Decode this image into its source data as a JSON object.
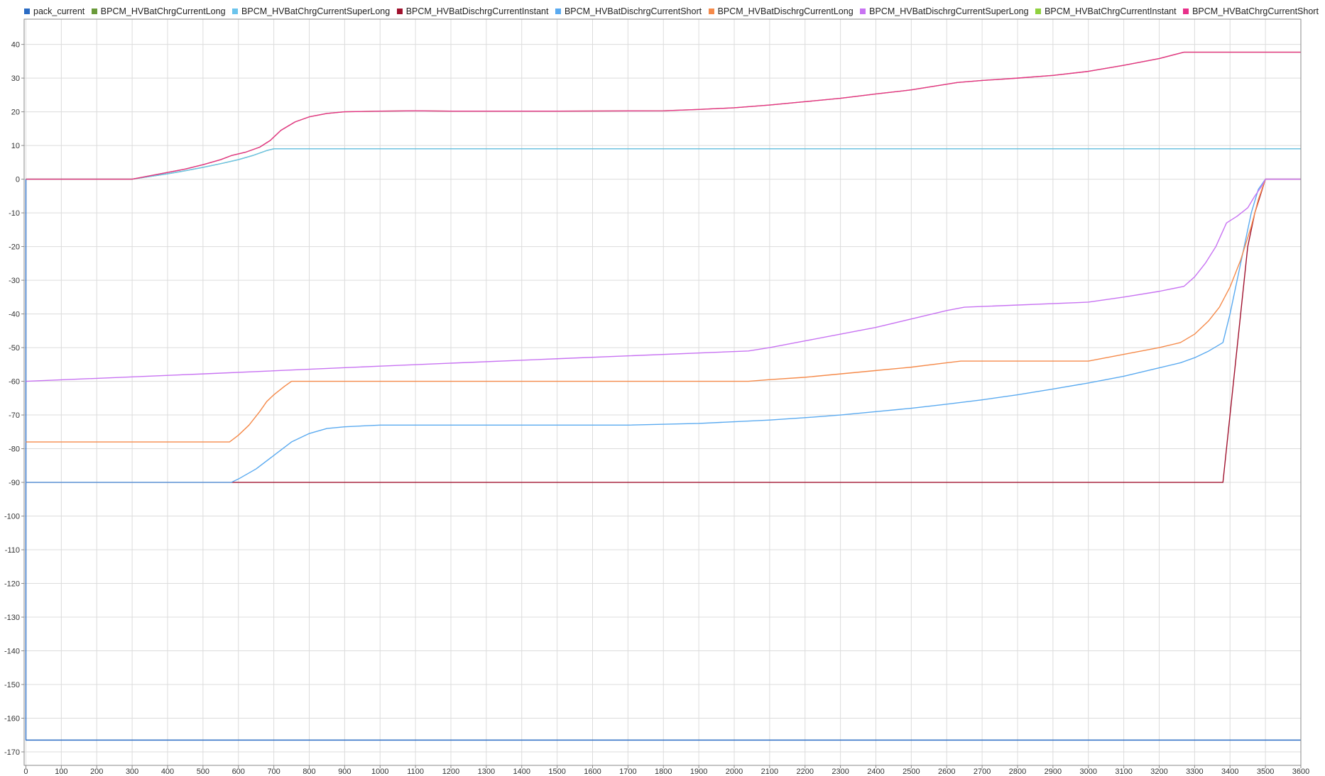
{
  "chart_data": {
    "type": "line",
    "title": "",
    "xlabel": "",
    "ylabel": "",
    "grid": true,
    "legend_position": "top",
    "xlim": [
      -5,
      3600
    ],
    "ylim": [
      -174,
      47.5
    ],
    "x_ticks": [
      0,
      100,
      200,
      300,
      400,
      500,
      600,
      700,
      800,
      900,
      1000,
      1100,
      1200,
      1300,
      1400,
      1500,
      1600,
      1700,
      1800,
      1900,
      2000,
      2100,
      2200,
      2300,
      2400,
      2500,
      2600,
      2700,
      2800,
      2900,
      3000,
      3100,
      3200,
      3300,
      3400,
      3500,
      3600
    ],
    "y_ticks": [
      40,
      30,
      20,
      10,
      0,
      -10,
      -20,
      -30,
      -40,
      -50,
      -60,
      -70,
      -80,
      -90,
      -100,
      -110,
      -120,
      -130,
      -140,
      -150,
      -160,
      -170
    ],
    "series": [
      {
        "name": "pack_current",
        "color": "#2b6cc4",
        "points": [
          [
            0,
            0
          ],
          [
            0,
            -166.5
          ],
          [
            3600,
            -166.5
          ]
        ]
      },
      {
        "name": "BPCM_HVBatChrgCurrentLong",
        "color": "#6a9a3a",
        "points": [
          [
            0,
            0
          ],
          [
            300,
            0
          ],
          [
            350,
            0.8
          ],
          [
            400,
            1.6
          ],
          [
            450,
            2.5
          ],
          [
            500,
            3.5
          ],
          [
            550,
            4.6
          ],
          [
            600,
            5.8
          ],
          [
            640,
            7
          ],
          [
            680,
            8.5
          ],
          [
            700,
            9
          ],
          [
            3600,
            9
          ]
        ]
      },
      {
        "name": "BPCM_HVBatChrgCurrentSuperLong",
        "color": "#6bc4ec",
        "points": [
          [
            0,
            0
          ],
          [
            300,
            0
          ],
          [
            350,
            0.8
          ],
          [
            400,
            1.6
          ],
          [
            450,
            2.5
          ],
          [
            500,
            3.5
          ],
          [
            550,
            4.6
          ],
          [
            600,
            5.8
          ],
          [
            640,
            7
          ],
          [
            680,
            8.5
          ],
          [
            700,
            9
          ],
          [
            3600,
            9
          ]
        ]
      },
      {
        "name": "BPCM_HVBatDischrgCurrentInstant",
        "color": "#a0122e",
        "points": [
          [
            0,
            -90
          ],
          [
            3380,
            -90
          ],
          [
            3420,
            -50
          ],
          [
            3450,
            -20
          ],
          [
            3470,
            -10
          ],
          [
            3500,
            0
          ],
          [
            3600,
            0
          ]
        ]
      },
      {
        "name": "BPCM_HVBatDischrgCurrentShort",
        "color": "#5aaaf0",
        "points": [
          [
            0,
            -90
          ],
          [
            580,
            -90
          ],
          [
            600,
            -89
          ],
          [
            650,
            -86
          ],
          [
            700,
            -82
          ],
          [
            750,
            -78
          ],
          [
            800,
            -75.5
          ],
          [
            850,
            -74
          ],
          [
            900,
            -73.5
          ],
          [
            1000,
            -73
          ],
          [
            1400,
            -73
          ],
          [
            1700,
            -73
          ],
          [
            1900,
            -72.5
          ],
          [
            2000,
            -72
          ],
          [
            2100,
            -71.5
          ],
          [
            2200,
            -70.8
          ],
          [
            2300,
            -70
          ],
          [
            2400,
            -69
          ],
          [
            2500,
            -68
          ],
          [
            2600,
            -66.8
          ],
          [
            2700,
            -65.5
          ],
          [
            2800,
            -64
          ],
          [
            2900,
            -62.3
          ],
          [
            3000,
            -60.5
          ],
          [
            3100,
            -58.5
          ],
          [
            3200,
            -56
          ],
          [
            3260,
            -54.5
          ],
          [
            3300,
            -53
          ],
          [
            3340,
            -51
          ],
          [
            3380,
            -48.5
          ],
          [
            3400,
            -40
          ],
          [
            3420,
            -30
          ],
          [
            3440,
            -20
          ],
          [
            3460,
            -10
          ],
          [
            3480,
            -3
          ],
          [
            3500,
            0
          ],
          [
            3600,
            0
          ]
        ]
      },
      {
        "name": "BPCM_HVBatDischrgCurrentLong",
        "color": "#f58a4a",
        "points": [
          [
            0,
            -78
          ],
          [
            575,
            -78
          ],
          [
            600,
            -76
          ],
          [
            630,
            -73
          ],
          [
            660,
            -69
          ],
          [
            680,
            -66
          ],
          [
            700,
            -64
          ],
          [
            730,
            -61.5
          ],
          [
            750,
            -60
          ],
          [
            2040,
            -60
          ],
          [
            2100,
            -59.5
          ],
          [
            2200,
            -58.8
          ],
          [
            2300,
            -57.8
          ],
          [
            2400,
            -56.8
          ],
          [
            2500,
            -55.8
          ],
          [
            2600,
            -54.5
          ],
          [
            2640,
            -54
          ],
          [
            3000,
            -54
          ],
          [
            3100,
            -52
          ],
          [
            3200,
            -50
          ],
          [
            3260,
            -48.5
          ],
          [
            3300,
            -46
          ],
          [
            3340,
            -42
          ],
          [
            3370,
            -38
          ],
          [
            3400,
            -32
          ],
          [
            3430,
            -24
          ],
          [
            3460,
            -14
          ],
          [
            3480,
            -6
          ],
          [
            3500,
            0
          ],
          [
            3600,
            0
          ]
        ]
      },
      {
        "name": "BPCM_HVBatDischrgCurrentSuperLong",
        "color": "#c873f2",
        "points": [
          [
            0,
            -60
          ],
          [
            500,
            -57.8
          ],
          [
            1000,
            -55.5
          ],
          [
            1500,
            -53.3
          ],
          [
            2040,
            -51
          ],
          [
            2100,
            -50
          ],
          [
            2200,
            -48
          ],
          [
            2300,
            -46
          ],
          [
            2400,
            -44
          ],
          [
            2500,
            -41.5
          ],
          [
            2600,
            -39
          ],
          [
            2650,
            -38
          ],
          [
            3000,
            -36.5
          ],
          [
            3100,
            -35
          ],
          [
            3200,
            -33.3
          ],
          [
            3270,
            -31.8
          ],
          [
            3300,
            -29
          ],
          [
            3330,
            -25
          ],
          [
            3360,
            -20
          ],
          [
            3390,
            -13
          ],
          [
            3420,
            -11
          ],
          [
            3450,
            -8.5
          ],
          [
            3470,
            -5
          ],
          [
            3490,
            -2
          ],
          [
            3500,
            0
          ],
          [
            3600,
            0
          ]
        ]
      },
      {
        "name": "BPCM_HVBatChrgCurrentInstant",
        "color": "#8fd13f",
        "points": [
          [
            0,
            0
          ],
          [
            300,
            0
          ],
          [
            350,
            1
          ],
          [
            400,
            2
          ],
          [
            450,
            3
          ],
          [
            500,
            4.3
          ],
          [
            550,
            5.8
          ],
          [
            580,
            7
          ],
          [
            620,
            8
          ],
          [
            660,
            9.5
          ],
          [
            690,
            11.5
          ],
          [
            720,
            14.5
          ],
          [
            760,
            17
          ],
          [
            800,
            18.5
          ],
          [
            850,
            19.5
          ],
          [
            900,
            20
          ],
          [
            1000,
            20.2
          ],
          [
            1100,
            20.3
          ],
          [
            1200,
            20.2
          ],
          [
            1500,
            20.2
          ],
          [
            1800,
            20.3
          ],
          [
            1900,
            20.7
          ],
          [
            2000,
            21.2
          ],
          [
            2100,
            22
          ],
          [
            2200,
            23
          ],
          [
            2300,
            24
          ],
          [
            2400,
            25.3
          ],
          [
            2500,
            26.5
          ],
          [
            2630,
            28.7
          ],
          [
            2700,
            29.3
          ],
          [
            2800,
            30
          ],
          [
            2900,
            30.8
          ],
          [
            3000,
            32
          ],
          [
            3100,
            33.8
          ],
          [
            3200,
            35.8
          ],
          [
            3270,
            37.7
          ],
          [
            3600,
            37.7
          ]
        ]
      },
      {
        "name": "BPCM_HVBatChrgCurrentShort",
        "color": "#e8308a",
        "points": [
          [
            0,
            0
          ],
          [
            300,
            0
          ],
          [
            350,
            1
          ],
          [
            400,
            2
          ],
          [
            450,
            3
          ],
          [
            500,
            4.3
          ],
          [
            550,
            5.8
          ],
          [
            580,
            7
          ],
          [
            620,
            8
          ],
          [
            660,
            9.5
          ],
          [
            690,
            11.5
          ],
          [
            720,
            14.5
          ],
          [
            760,
            17
          ],
          [
            800,
            18.5
          ],
          [
            850,
            19.5
          ],
          [
            900,
            20
          ],
          [
            1000,
            20.2
          ],
          [
            1100,
            20.3
          ],
          [
            1200,
            20.2
          ],
          [
            1500,
            20.2
          ],
          [
            1800,
            20.3
          ],
          [
            1900,
            20.7
          ],
          [
            2000,
            21.2
          ],
          [
            2100,
            22
          ],
          [
            2200,
            23
          ],
          [
            2300,
            24
          ],
          [
            2400,
            25.3
          ],
          [
            2500,
            26.5
          ],
          [
            2630,
            28.7
          ],
          [
            2700,
            29.3
          ],
          [
            2800,
            30
          ],
          [
            2900,
            30.8
          ],
          [
            3000,
            32
          ],
          [
            3100,
            33.8
          ],
          [
            3200,
            35.8
          ],
          [
            3270,
            37.7
          ],
          [
            3600,
            37.7
          ]
        ]
      }
    ]
  }
}
